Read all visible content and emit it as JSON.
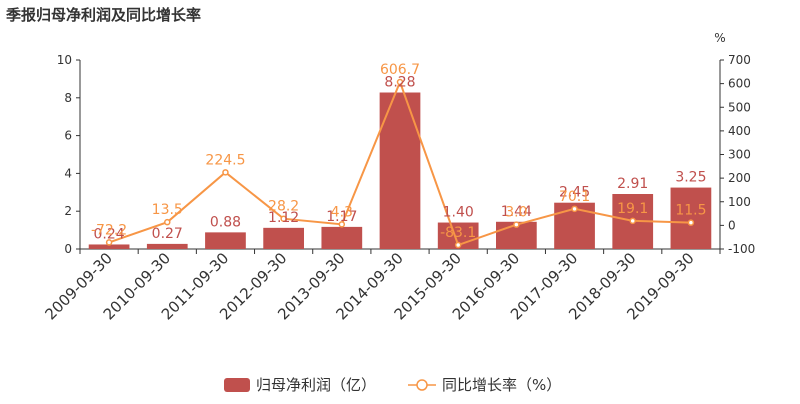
{
  "title": "季报归母净利润及同比增长率",
  "legend": {
    "bar_label": "归母净利润（亿）",
    "line_label": "同比增长率（%）"
  },
  "colors": {
    "bar": "#c0504d",
    "line": "#f79646",
    "axis": "#333333"
  },
  "chart_data": {
    "type": "bar",
    "title": "季报归母净利润及同比增长率",
    "categories": [
      "2009-09-30",
      "2010-09-30",
      "2011-09-30",
      "2012-09-30",
      "2013-09-30",
      "2014-09-30",
      "2015-09-30",
      "2016-09-30",
      "2017-09-30",
      "2018-09-30",
      "2019-09-30"
    ],
    "series": [
      {
        "name": "归母净利润（亿）",
        "type": "bar",
        "axis": "left",
        "values": [
          0.24,
          0.27,
          0.88,
          1.12,
          1.17,
          8.28,
          1.4,
          1.44,
          2.45,
          2.91,
          3.25
        ],
        "labels": [
          "0.24",
          "0.27",
          "0.88",
          "1.12",
          "1.17",
          "8.28",
          "1.40",
          "1.44",
          "2.45",
          "2.91",
          "3.25"
        ]
      },
      {
        "name": "同比增长率（%）",
        "type": "line",
        "axis": "right",
        "values": [
          -72.2,
          13.5,
          224.5,
          28.2,
          4.3,
          606.7,
          -83.1,
          3.0,
          70.1,
          19.1,
          11.5
        ],
        "labels": [
          "-72.2",
          "13.5",
          "224.5",
          "28.2",
          "4.3",
          "606.7",
          "-83.1",
          "3.0",
          "70.1",
          "19.1",
          "11.5"
        ]
      }
    ],
    "y_left": {
      "min": 0,
      "max": 10,
      "ticks": [
        "0",
        "2",
        "4",
        "6",
        "8",
        "10"
      ]
    },
    "y_right": {
      "min": -100,
      "max": 700,
      "unit": "%",
      "ticks": [
        "-100",
        "0",
        "100",
        "200",
        "300",
        "400",
        "500",
        "600",
        "700"
      ]
    },
    "grid": false,
    "legend_position": "bottom"
  }
}
